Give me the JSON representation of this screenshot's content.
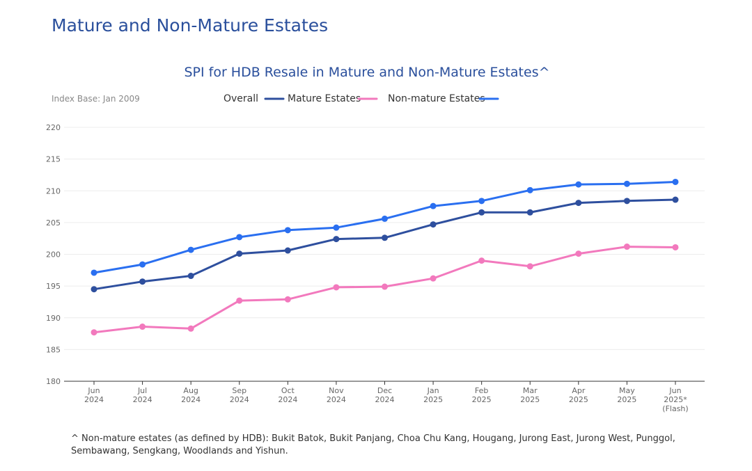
{
  "page": {
    "heading": "Mature and Non-Mature Estates",
    "footnote": "^ Non-mature estates (as defined by HDB): Bukit Batok, Bukit Panjang, Choa Chu Kang, Hougang, Jurong East, Jurong West, Punggol, Sembawang, Sengkang, Woodlands and Yishun."
  },
  "chart_data": {
    "type": "line",
    "title": "SPI for HDB Resale in Mature and Non-Mature Estates^",
    "index_base_note": "Index Base: Jan 2009",
    "legend_position": "top-center",
    "legend_entries": [
      "Overall",
      "Mature Estates",
      "Non-mature Estates"
    ],
    "grid": true,
    "ylim": [
      180,
      220
    ],
    "yticks": [
      180,
      185,
      190,
      195,
      200,
      205,
      210,
      215,
      220
    ],
    "categories": [
      [
        "Jun",
        "2024"
      ],
      [
        "Jul",
        "2024"
      ],
      [
        "Aug",
        "2024"
      ],
      [
        "Sep",
        "2024"
      ],
      [
        "Oct",
        "2024"
      ],
      [
        "Nov",
        "2024"
      ],
      [
        "Dec",
        "2024"
      ],
      [
        "Jan",
        "2025"
      ],
      [
        "Feb",
        "2025"
      ],
      [
        "Mar",
        "2025"
      ],
      [
        "Apr",
        "2025"
      ],
      [
        "May",
        "2025"
      ],
      [
        "Jun",
        "2025*",
        "(Flash)"
      ]
    ],
    "series": [
      {
        "name": "Overall",
        "color": "#2e4f9e",
        "values": [
          194.5,
          195.7,
          196.6,
          200.1,
          200.6,
          202.4,
          202.6,
          204.7,
          206.6,
          206.6,
          208.1,
          208.4,
          208.6
        ]
      },
      {
        "name": "Mature Estates",
        "color": "#f279bd",
        "values": [
          187.7,
          188.6,
          188.3,
          192.7,
          192.9,
          194.8,
          194.9,
          196.2,
          199.0,
          198.1,
          200.1,
          201.2,
          201.1
        ]
      },
      {
        "name": "Non-mature Estates",
        "color": "#2a6ff0",
        "values": [
          197.1,
          198.4,
          200.7,
          202.7,
          203.8,
          204.2,
          205.6,
          207.6,
          208.4,
          210.1,
          211.0,
          211.1,
          211.4
        ]
      }
    ]
  }
}
